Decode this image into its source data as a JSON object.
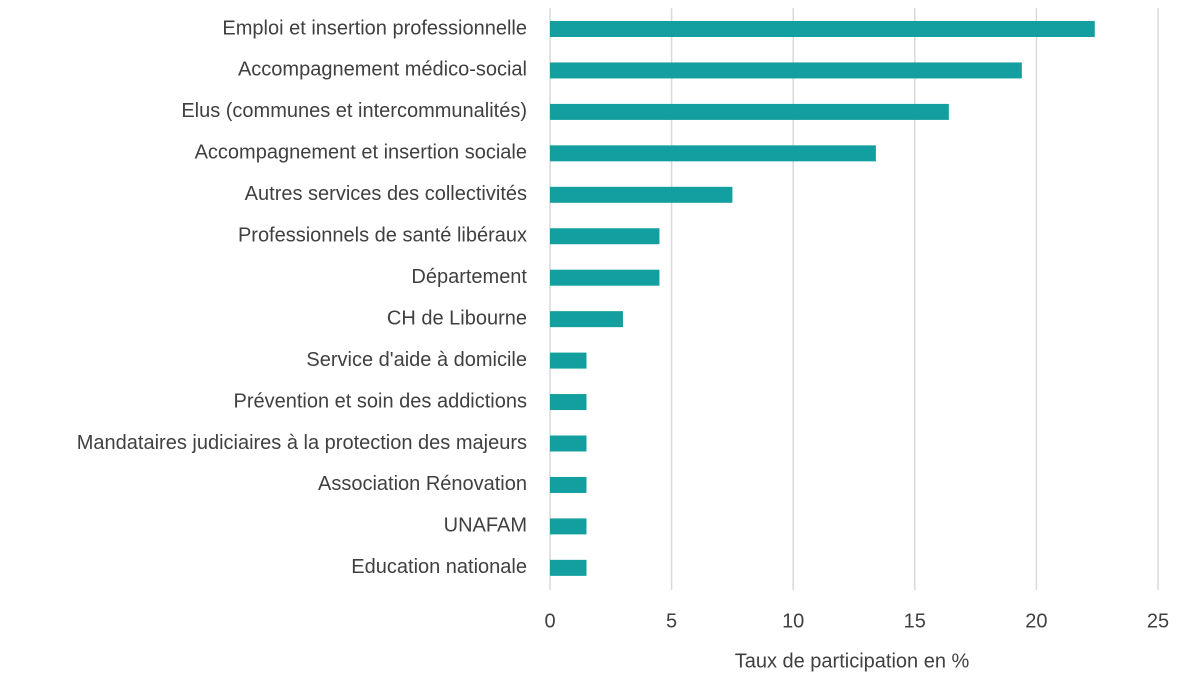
{
  "chart_data": {
    "type": "hbar",
    "categories": [
      "Emploi et insertion professionnelle",
      "Accompagnement médico-social",
      "Elus (communes et intercommunalités)",
      "Accompagnement et insertion sociale",
      "Autres services des collectivités",
      "Professionnels de santé libéraux",
      "Département",
      "CH de Libourne",
      "Service d'aide à domicile",
      "Prévention et soin des addictions",
      "Mandataires judiciaires à la protection des majeurs",
      "Association Rénovation",
      "UNAFAM",
      "Education nationale"
    ],
    "values": [
      22.4,
      19.4,
      16.4,
      13.4,
      7.5,
      4.5,
      4.5,
      3.0,
      1.5,
      1.5,
      1.5,
      1.5,
      1.5,
      1.5
    ],
    "color": "#139f9f",
    "xlabel": "Taux de participation en %",
    "xlim": [
      0,
      25
    ],
    "xticks": [
      0,
      5,
      10,
      15,
      20,
      25
    ],
    "grid": true
  }
}
